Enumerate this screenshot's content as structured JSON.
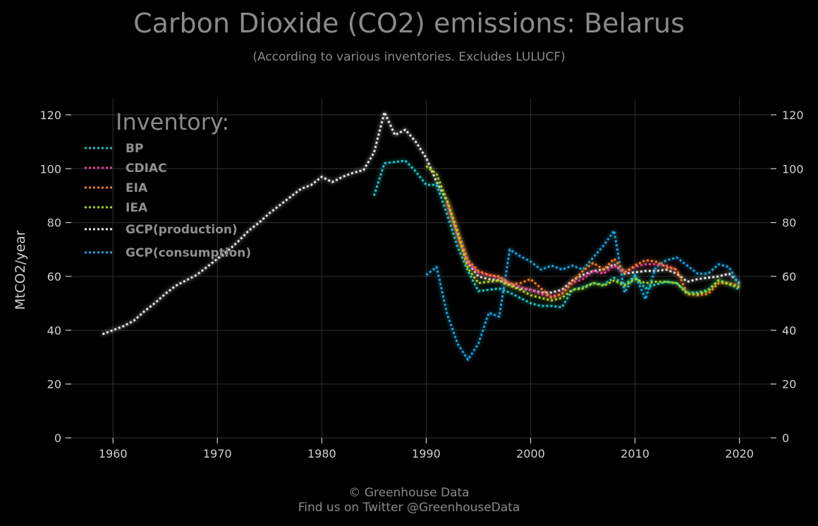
{
  "chart_data": {
    "type": "line",
    "title": "Carbon Dioxide (CO2) emissions: Belarus",
    "subtitle": "(According to various inventories. Excludes LULUCF)",
    "xlabel": "",
    "ylabel": "MtCO2/year",
    "xlim": [
      1956,
      2023
    ],
    "ylim": [
      0,
      126
    ],
    "x_ticks": [
      1960,
      1970,
      1980,
      1990,
      2000,
      2010,
      2020
    ],
    "y_ticks": [
      0,
      20,
      40,
      60,
      80,
      100,
      120
    ],
    "grid": true,
    "legend": {
      "title": "Inventory:",
      "placement": "top-left"
    },
    "series": [
      {
        "name": "GCP(production)",
        "color": "#e6e6e6",
        "x": [
          1959,
          1960,
          1961,
          1962,
          1963,
          1964,
          1965,
          1966,
          1967,
          1968,
          1969,
          1970,
          1971,
          1972,
          1973,
          1974,
          1975,
          1976,
          1977,
          1978,
          1979,
          1980,
          1981,
          1982,
          1983,
          1984,
          1985,
          1986,
          1987,
          1988,
          1989,
          1990,
          1991,
          1992,
          1993,
          1994,
          1995,
          1996,
          1997,
          1998,
          1999,
          2000,
          2001,
          2002,
          2003,
          2004,
          2005,
          2006,
          2007,
          2008,
          2009,
          2010,
          2011,
          2012,
          2013,
          2014,
          2015,
          2016,
          2017,
          2018,
          2019,
          2020
        ],
        "y": [
          38.5,
          40,
          41.5,
          43.5,
          47,
          50,
          53.5,
          56.5,
          58.5,
          60.5,
          63.5,
          66.5,
          69.5,
          73,
          77,
          80,
          83.5,
          86.5,
          89.5,
          92.5,
          94,
          97,
          95,
          97,
          98.5,
          99.5,
          106,
          121,
          112.5,
          114.5,
          110,
          104,
          95,
          88,
          76,
          65,
          60,
          59,
          58.5,
          57,
          55.5,
          55,
          54,
          54,
          55,
          58.5,
          60.5,
          62,
          62.5,
          64.5,
          61,
          61.5,
          62,
          62,
          62.5,
          61,
          58,
          59,
          59.5,
          60,
          61,
          57.5
        ]
      },
      {
        "name": "GCP(consumption)",
        "color": "#1aa3d9",
        "x": [
          1990,
          1991,
          1992,
          1993,
          1994,
          1995,
          1996,
          1997,
          1998,
          1999,
          2000,
          2001,
          2002,
          2003,
          2004,
          2005,
          2006,
          2007,
          2008,
          2009,
          2010,
          2011,
          2012,
          2013,
          2014,
          2015,
          2016,
          2017,
          2018,
          2019,
          2020
        ],
        "y": [
          60.5,
          63.5,
          46,
          35,
          29,
          35,
          46.5,
          45,
          70,
          67.5,
          65.5,
          62.5,
          64,
          62.5,
          64,
          62.5,
          67,
          71.5,
          77,
          54,
          60.5,
          51.5,
          63.5,
          66,
          67,
          64,
          61,
          61,
          64.5,
          63.5,
          56.5
        ]
      },
      {
        "name": "BP",
        "color": "#18c6c6",
        "x": [
          1985,
          1986,
          1987,
          1988,
          1989,
          1990,
          1991,
          1992,
          1993,
          1994,
          1995,
          1996,
          1997,
          1998,
          1999,
          2000,
          2001,
          2002,
          2003,
          2004,
          2005,
          2006,
          2007,
          2008,
          2009,
          2010,
          2011,
          2012,
          2013,
          2014,
          2015,
          2016,
          2017,
          2018,
          2019,
          2020
        ],
        "y": [
          90,
          102,
          102.5,
          103,
          99,
          94,
          94,
          83,
          71,
          62,
          54.5,
          55,
          55.5,
          54,
          52,
          50,
          49,
          49,
          48.5,
          55,
          56,
          57.5,
          57,
          59.5,
          57,
          60,
          55.5,
          57,
          58,
          57.5,
          54,
          54,
          55,
          58.5,
          57.5,
          55
        ]
      },
      {
        "name": "CDIAC",
        "color": "#e83e9a",
        "x": [
          1992,
          1993,
          1994,
          1995,
          1996,
          1997,
          1998,
          1999,
          2000,
          2001,
          2002,
          2003,
          2004,
          2005,
          2006,
          2007,
          2008,
          2009,
          2010,
          2011,
          2012,
          2013,
          2014
        ],
        "y": [
          87,
          75,
          65,
          61.5,
          60.5,
          59.5,
          57.5,
          56,
          55,
          53.5,
          52.5,
          53.5,
          57.5,
          59,
          62,
          61,
          64,
          61.5,
          63.5,
          64.5,
          64.5,
          64,
          62.5
        ]
      },
      {
        "name": "EIA",
        "color": "#f07d1f",
        "x": [
          1992,
          1993,
          1994,
          1995,
          1996,
          1997,
          1998,
          1999,
          2000,
          2001,
          2002,
          2003,
          2004,
          2005,
          2006,
          2007,
          2008,
          2009,
          2010,
          2011,
          2012,
          2013,
          2014,
          2015,
          2016,
          2017,
          2018,
          2019,
          2020
        ],
        "y": [
          88,
          77,
          66,
          62,
          60.5,
          60,
          57,
          57.5,
          59,
          55.5,
          52,
          53.5,
          58,
          62,
          65,
          62.5,
          66.5,
          61.5,
          64,
          66,
          65.5,
          63.5,
          62.5,
          53.5,
          53,
          53.5,
          57.5,
          57.5,
          56.5
        ]
      },
      {
        "name": "IEA",
        "color": "#a8d21f",
        "x": [
          1990,
          1991,
          1992,
          1993,
          1994,
          1995,
          1996,
          1997,
          1998,
          1999,
          2000,
          2001,
          2002,
          2003,
          2004,
          2005,
          2006,
          2007,
          2008,
          2009,
          2010,
          2011,
          2012,
          2013,
          2014,
          2015,
          2016,
          2017,
          2018,
          2019,
          2020
        ],
        "y": [
          101,
          98,
          88,
          76,
          63,
          57.5,
          58,
          58.5,
          56.5,
          55,
          53,
          52,
          51,
          52,
          55,
          55.5,
          57.5,
          56.5,
          58.5,
          56.5,
          59,
          57.5,
          58,
          58,
          57.5,
          53.5,
          53.5,
          54.5,
          58.5,
          57,
          56
        ]
      }
    ],
    "legend_order": [
      "BP",
      "CDIAC",
      "EIA",
      "IEA",
      "GCP(production)",
      "GCP(consumption)"
    ]
  },
  "footer": {
    "line1": "© Greenhouse Data",
    "line2": "Find us on Twitter @GreenhouseData"
  }
}
